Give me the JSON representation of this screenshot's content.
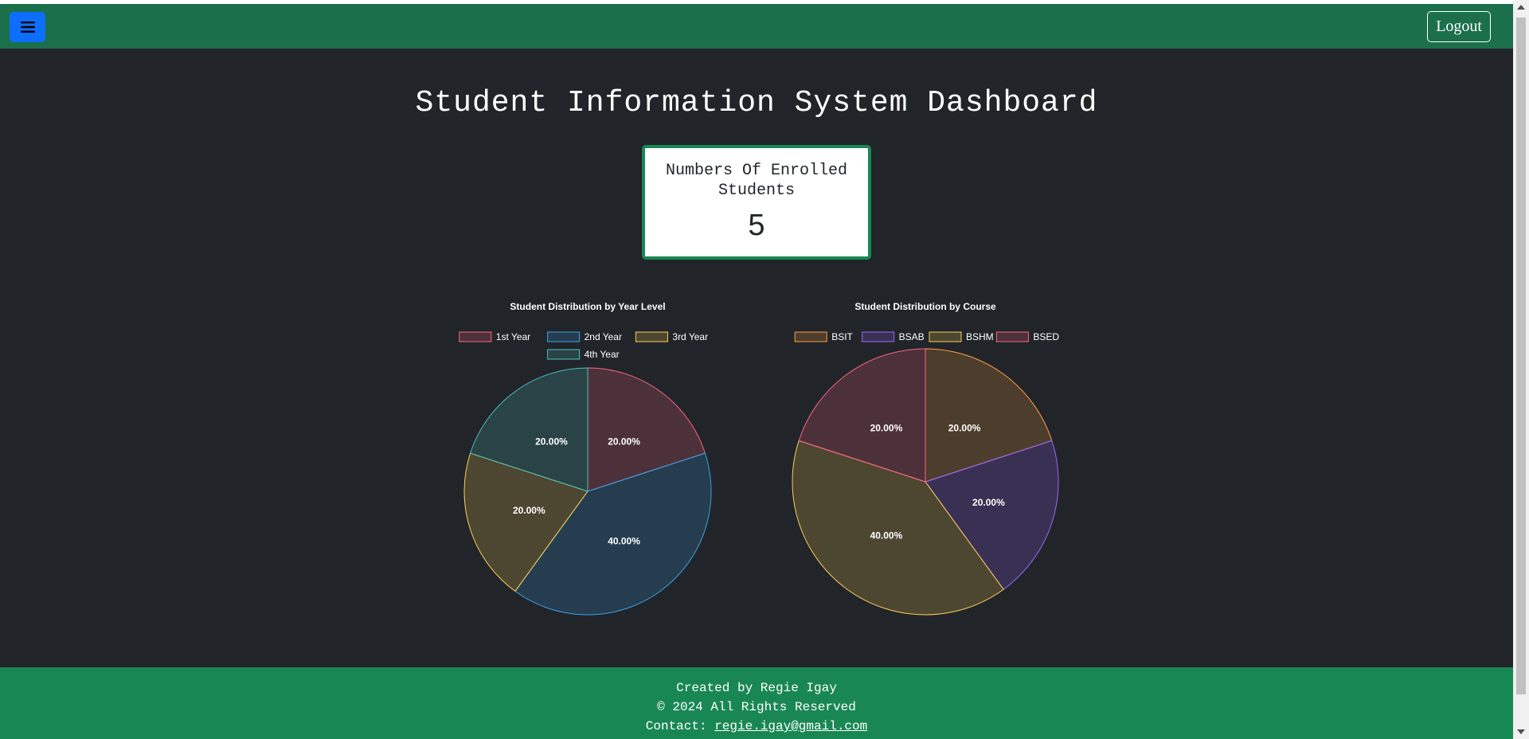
{
  "header": {
    "menu_icon": "hamburger-icon",
    "logout_label": "Logout"
  },
  "page": {
    "title": "Student Information System Dashboard"
  },
  "stats_card": {
    "title": "Numbers Of Enrolled Students",
    "count": "5"
  },
  "chart_data": [
    {
      "type": "pie",
      "title": "Student Distribution by Year Level",
      "categories": [
        "1st Year",
        "2nd Year",
        "3rd Year",
        "4th Year"
      ],
      "values": [
        20,
        40,
        20,
        20
      ],
      "labels": [
        "20.00%",
        "40.00%",
        "20.00%",
        "20.00%"
      ],
      "colors": [
        "#ff6384",
        "#36a2eb",
        "#ffce56",
        "#4bc0c0"
      ],
      "legend_position": "top"
    },
    {
      "type": "pie",
      "title": "Student Distribution by Course",
      "categories": [
        "BSIT",
        "BSAB",
        "BSHM",
        "BSED"
      ],
      "values": [
        20,
        20,
        40,
        20
      ],
      "labels": [
        "20.00%",
        "20.00%",
        "40.00%",
        "20.00%"
      ],
      "colors": [
        "#ff9f40",
        "#9966ff",
        "#ffcd56",
        "#ff6384"
      ],
      "legend_position": "top"
    }
  ],
  "footer": {
    "created_by": "Created by Regie Igay",
    "rights": "© 2024 All Rights Reserved",
    "contact_label": "Contact: ",
    "email": "regie.igay@gmail.com"
  }
}
